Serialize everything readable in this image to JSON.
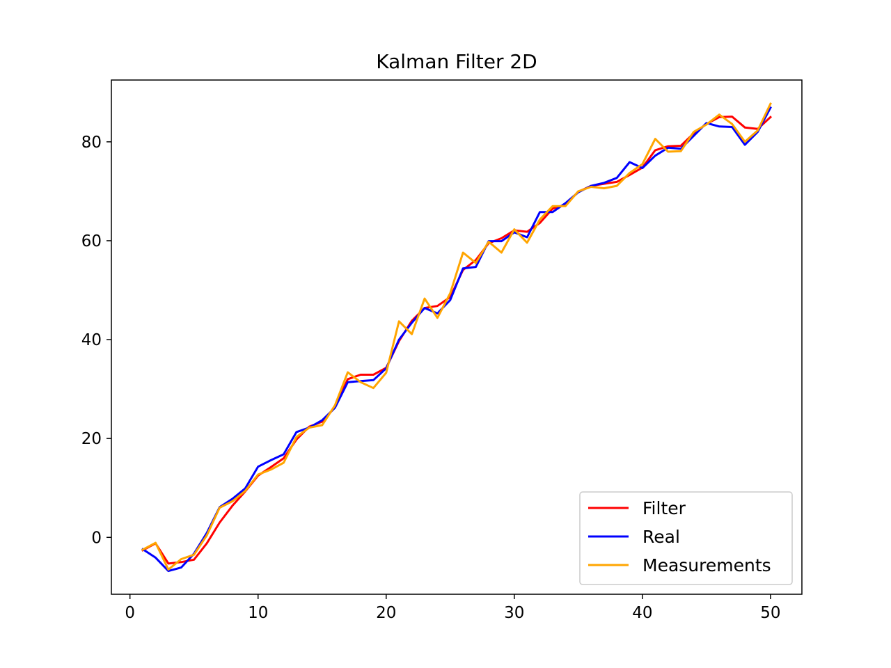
{
  "chart_data": {
    "type": "line",
    "title": "Kalman Filter 2D",
    "xlabel": "",
    "ylabel": "",
    "xlim": [
      -1.45,
      52.45
    ],
    "ylim": [
      -11.5,
      92.5
    ],
    "xticks": [
      0,
      10,
      20,
      30,
      40,
      50
    ],
    "yticks": [
      0,
      20,
      40,
      60,
      80
    ],
    "grid": false,
    "legend_position": "bottom-right",
    "x": [
      1,
      2,
      3,
      4,
      5,
      6,
      7,
      8,
      9,
      10,
      11,
      12,
      13,
      14,
      15,
      16,
      17,
      18,
      19,
      20,
      21,
      22,
      23,
      24,
      25,
      26,
      27,
      28,
      29,
      30,
      31,
      32,
      33,
      34,
      35,
      36,
      37,
      38,
      39,
      40,
      41,
      42,
      43,
      44,
      45,
      46,
      47,
      48,
      49,
      50
    ],
    "series": [
      {
        "name": "Filter",
        "color": "#ff0000",
        "values": [
          -2.6,
          -1.2,
          -5.3,
          -5.0,
          -4.5,
          -1.2,
          3.0,
          6.4,
          9.3,
          12.5,
          14.2,
          16.0,
          19.8,
          22.4,
          23.4,
          26.3,
          32.0,
          32.9,
          32.9,
          34.3,
          39.7,
          43.8,
          46.4,
          46.8,
          48.6,
          54.1,
          56.1,
          59.5,
          60.5,
          62.1,
          61.8,
          63.6,
          66.5,
          67.3,
          69.9,
          71.1,
          71.5,
          71.9,
          73.3,
          74.8,
          78.3,
          79.1,
          79.2,
          81.7,
          83.6,
          85.0,
          85.1,
          82.9,
          82.6,
          85.0
        ]
      },
      {
        "name": "Real",
        "color": "#0000ff",
        "values": [
          -2.4,
          -4.1,
          -6.8,
          -6.1,
          -3.3,
          0.9,
          6.1,
          7.8,
          9.9,
          14.3,
          15.6,
          16.8,
          21.3,
          22.2,
          23.7,
          26.2,
          31.4,
          31.6,
          31.8,
          34.2,
          40.0,
          43.4,
          46.4,
          45.3,
          48.0,
          54.4,
          54.7,
          59.9,
          59.9,
          61.7,
          60.7,
          65.8,
          65.8,
          67.6,
          69.8,
          71.1,
          71.7,
          72.7,
          75.9,
          74.7,
          77.2,
          78.8,
          78.6,
          81.2,
          83.8,
          83.1,
          83.0,
          79.4,
          82.0,
          86.9
        ]
      },
      {
        "name": "Measurements",
        "color": "#ffa500",
        "values": [
          -2.5,
          -1.1,
          -6.5,
          -4.4,
          -3.5,
          0.4,
          6.0,
          7.3,
          9.4,
          12.7,
          13.7,
          15.1,
          20.3,
          22.2,
          22.7,
          26.7,
          33.4,
          31.4,
          30.2,
          33.3,
          43.7,
          41.1,
          48.3,
          44.4,
          49.4,
          57.6,
          55.5,
          59.8,
          57.6,
          62.3,
          59.6,
          64.3,
          67.0,
          67.0,
          70.0,
          70.9,
          70.6,
          71.1,
          73.7,
          75.5,
          80.6,
          78.0,
          78.1,
          82.0,
          83.5,
          85.5,
          83.6,
          80.0,
          82.3,
          87.7
        ]
      }
    ]
  }
}
